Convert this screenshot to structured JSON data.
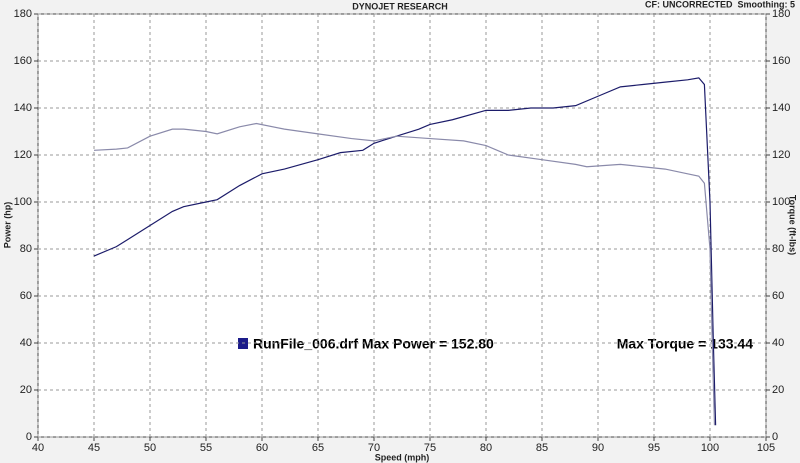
{
  "chart_data": {
    "type": "line",
    "title": "DYNOJET RESEARCH",
    "subtitle": "CF: UNCORRECTED  Smoothing: 5",
    "x_label": "Speed (mph)",
    "y_label": "Power (hp)",
    "y2_label": "Torque (ft-lbs)",
    "annotations": [
      "RunFile_006.drf Max Power = 152.80",
      "Max Torque = 133.44"
    ],
    "xlim": [
      40,
      105
    ],
    "xticks": [
      40,
      45,
      50,
      55,
      60,
      65,
      70,
      75,
      80,
      85,
      90,
      95,
      100,
      105
    ],
    "ylim": [
      0,
      180
    ],
    "yticks": [
      0,
      20,
      40,
      60,
      80,
      100,
      120,
      140,
      160,
      180
    ],
    "y2lim": [
      0,
      180
    ],
    "y2ticks": [
      0,
      20,
      40,
      60,
      80,
      100,
      120,
      140,
      160,
      180
    ],
    "grid": true,
    "series": [
      {
        "color": "#1c1c6a",
        "axis": "y",
        "x": [
          45,
          47,
          48,
          50,
          52,
          53,
          55,
          56,
          58,
          60,
          62,
          65,
          67,
          69,
          70,
          72,
          74,
          75,
          77,
          80,
          82,
          84,
          86,
          88,
          90,
          92,
          94,
          96,
          98,
          99,
          99.5,
          100,
          100.3,
          100.5
        ],
        "values": [
          77,
          81,
          84,
          90,
          96,
          98,
          100,
          101,
          107,
          112,
          114,
          118,
          121,
          122,
          125,
          128,
          131,
          133,
          135,
          139,
          139,
          140,
          140,
          141,
          145,
          149,
          150,
          151,
          152,
          152.8,
          150,
          100,
          40,
          5
        ]
      },
      {
        "color": "#8a8aaa",
        "axis": "y2",
        "x": [
          45,
          47,
          48,
          50,
          52,
          53,
          55,
          56,
          58,
          59.5,
          62,
          65,
          68,
          70,
          72,
          75,
          78,
          80,
          82,
          85,
          88,
          89,
          92,
          94,
          96,
          98,
          99,
          99.5,
          100,
          100.2,
          100.4
        ],
        "values": [
          122,
          122.5,
          123,
          128,
          131,
          131,
          130,
          129,
          132,
          133.4,
          131,
          129,
          127,
          126,
          128,
          127,
          126,
          124,
          120,
          118,
          116,
          115,
          116,
          115,
          114,
          112,
          111,
          108,
          80,
          40,
          5
        ]
      }
    ]
  }
}
